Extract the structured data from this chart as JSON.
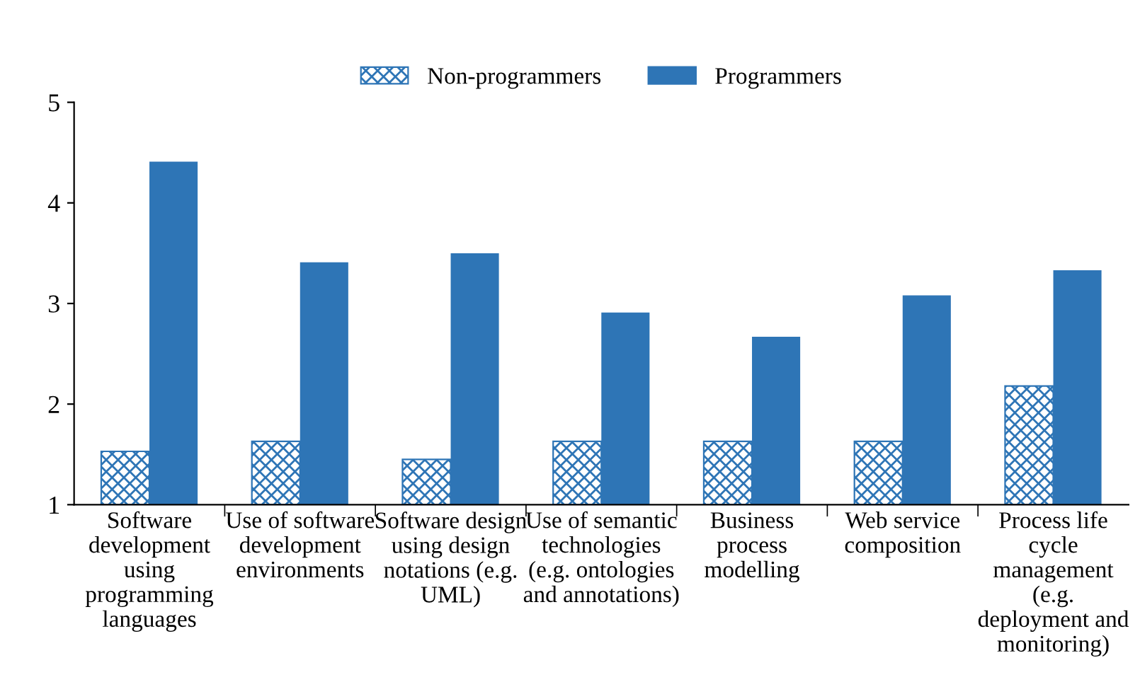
{
  "chart_data": {
    "type": "bar",
    "categories": [
      "Software\ndevelopment\nusing\nprogramming\nlanguages",
      "Use of software\ndevelopment\nenvironments",
      "Software design\nusing design\nnotations (e.g.\nUML)",
      "Use of semantic\ntechnologies\n(e.g. ontologies\nand annotations)",
      "Business\nprocess\nmodelling",
      "Web service\ncomposition",
      "Process life\ncycle\nmanagement\n(e.g.\ndeployment and\nmonitoring)"
    ],
    "series": [
      {
        "name": "Non-programmers",
        "color": "#2e75b6",
        "values": [
          1.53,
          1.63,
          1.45,
          1.63,
          1.63,
          1.63,
          2.18
        ]
      },
      {
        "name": "Programmers",
        "color": "#2e75b6",
        "values": [
          4.41,
          3.41,
          3.5,
          2.91,
          2.67,
          3.08,
          3.33
        ]
      }
    ],
    "ylim": [
      1,
      5
    ],
    "yticks": [
      1,
      2,
      3,
      4,
      5
    ],
    "grid": false,
    "legend": "top"
  }
}
